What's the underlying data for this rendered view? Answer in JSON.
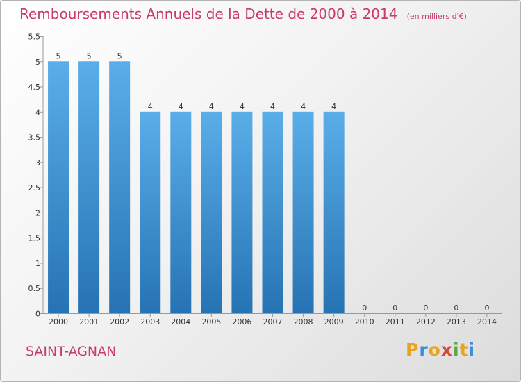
{
  "title": "Remboursements Annuels de la Dette de 2000 à 2014",
  "subtitle": "(en milliers d'€)",
  "commune": "SAINT-AGNAN",
  "brand": {
    "letters": [
      "P",
      "r",
      "o",
      "x",
      "i",
      "t",
      "i"
    ],
    "colors": [
      "#e8a41c",
      "#3a8fd6",
      "#e8a41c",
      "#d9463e",
      "#5aa83c",
      "#e8a41c",
      "#3a8fd6"
    ]
  },
  "colors": {
    "accent": "#c83a6e",
    "bar_top": "#5aaee8",
    "bar_bottom": "#2673b4"
  },
  "chart_data": {
    "type": "bar",
    "categories": [
      "2000",
      "2001",
      "2002",
      "2003",
      "2004",
      "2005",
      "2006",
      "2007",
      "2008",
      "2009",
      "2010",
      "2011",
      "2012",
      "2013",
      "2014"
    ],
    "values": [
      5,
      5,
      5,
      4,
      4,
      4,
      4,
      4,
      4,
      4,
      0,
      0,
      0,
      0,
      0
    ],
    "data_labels": [
      "5",
      "5",
      "5",
      "4",
      "4",
      "4",
      "4",
      "4",
      "4",
      "4",
      "0",
      "0",
      "0",
      "0",
      "0"
    ],
    "yticks": [
      {
        "value": 0,
        "label": "0"
      },
      {
        "value": 0.5,
        "label": "0.5"
      },
      {
        "value": 1,
        "label": "1"
      },
      {
        "value": 1.5,
        "label": "1.5"
      },
      {
        "value": 2,
        "label": "2"
      },
      {
        "value": 2.5,
        "label": "2.5"
      },
      {
        "value": 3,
        "label": "3"
      },
      {
        "value": 3.5,
        "label": "3.5"
      },
      {
        "value": 4,
        "label": "4"
      },
      {
        "value": 4.5,
        "label": "4.5"
      },
      {
        "value": 5,
        "label": "5"
      },
      {
        "value": 5.5,
        "label": "5.5"
      }
    ],
    "title": "Remboursements Annuels de la Dette de 2000 à 2014",
    "xlabel": "",
    "ylabel": "",
    "ylim": [
      0,
      5.5
    ],
    "grid": false,
    "legend": "none"
  }
}
